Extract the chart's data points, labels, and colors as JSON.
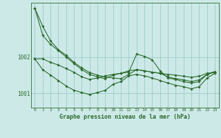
{
  "title": "Graphe pression niveau de la mer (hPa)",
  "bg_color": "#cce9e7",
  "grid_color": "#99ccc8",
  "line_color": "#2d6a2d",
  "xlim_min": -0.5,
  "xlim_max": 23.5,
  "ylim_min": 1000.6,
  "ylim_max": 1003.5,
  "yticks": [
    1001,
    1002
  ],
  "ytick_labels": [
    "1001",
    "1002"
  ],
  "xticks": [
    0,
    1,
    2,
    3,
    4,
    5,
    6,
    7,
    8,
    9,
    10,
    11,
    12,
    13,
    14,
    15,
    16,
    17,
    18,
    19,
    20,
    21,
    22,
    23
  ],
  "series": [
    [
      1003.35,
      1002.85,
      1002.45,
      1002.2,
      1002.05,
      1001.85,
      1001.7,
      1001.57,
      1001.5,
      1001.45,
      1001.42,
      1001.4,
      1001.52,
      1001.65,
      1001.62,
      1001.58,
      1001.55,
      1001.52,
      1001.5,
      1001.47,
      1001.44,
      1001.47,
      1001.55,
      1001.58
    ],
    [
      1003.35,
      1002.6,
      1002.35,
      1002.18,
      1002.0,
      1001.82,
      1001.65,
      1001.52,
      1001.45,
      1001.4,
      1001.5,
      1001.55,
      1001.62,
      1001.65,
      1001.62,
      1001.58,
      1001.55,
      1001.45,
      1001.4,
      1001.37,
      1001.32,
      1001.37,
      1001.52,
      1001.58
    ],
    [
      1001.95,
      1001.95,
      1001.85,
      1001.78,
      1001.68,
      1001.58,
      1001.45,
      1001.38,
      1001.42,
      1001.48,
      1001.52,
      1001.55,
      1001.58,
      1002.08,
      1002.02,
      1001.92,
      1001.62,
      1001.42,
      1001.38,
      1001.32,
      1001.28,
      1001.32,
      1001.52,
      1001.6
    ],
    [
      1001.95,
      1001.65,
      1001.5,
      1001.35,
      1001.2,
      1001.08,
      1001.02,
      1000.96,
      1001.02,
      1001.08,
      1001.25,
      1001.32,
      1001.48,
      1001.52,
      1001.48,
      1001.42,
      1001.35,
      1001.28,
      1001.22,
      1001.18,
      1001.12,
      1001.18,
      1001.42,
      1001.55
    ]
  ]
}
